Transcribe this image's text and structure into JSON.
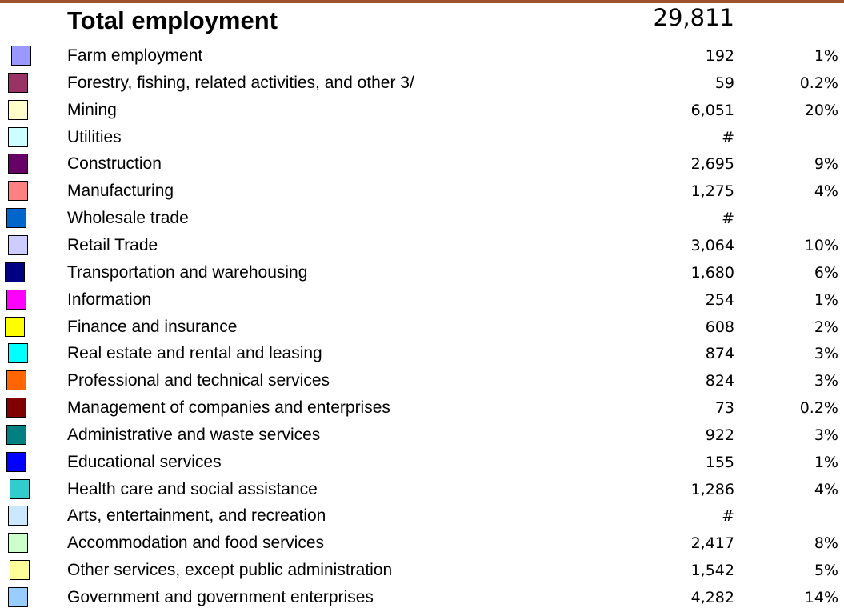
{
  "header": {
    "title": "Total employment",
    "total": "29,811"
  },
  "table": {
    "rows": [
      {
        "label": "Farm employment",
        "value": "192",
        "percent": "1%",
        "color": "#9999ff"
      },
      {
        "label": "Forestry, fishing, related activities, and other 3/",
        "value": "59",
        "percent": "0.2%",
        "color": "#993366"
      },
      {
        "label": "Mining",
        "value": "6,051",
        "percent": "20%",
        "color": "#ffffcc"
      },
      {
        "label": "Utilities",
        "value": "#",
        "color": "#ccffff"
      },
      {
        "label": "Construction",
        "value": "2,695",
        "percent": "9%",
        "color": "#660066"
      },
      {
        "label": "Manufacturing",
        "value": "1,275",
        "percent": "4%",
        "color": "#ff8080"
      },
      {
        "label": "Wholesale trade",
        "value": "#",
        "color": "#0066cc"
      },
      {
        "label": "Retail Trade",
        "value": "3,064",
        "percent": "10%",
        "color": "#ccccff"
      },
      {
        "label": "Transportation and warehousing",
        "value": "1,680",
        "percent": "6%",
        "color": "#000080"
      },
      {
        "label": "Information",
        "value": "254",
        "percent": "1%",
        "color": "#ff00ff"
      },
      {
        "label": "Finance and insurance",
        "value": "608",
        "percent": "2%",
        "color": "#ffff00"
      },
      {
        "label": "Real estate and rental and leasing",
        "value": "874",
        "percent": "3%",
        "color": "#00ffff"
      },
      {
        "label": "Professional and technical services",
        "value": "824",
        "percent": "3%",
        "color": "#ff6600"
      },
      {
        "label": "Management of companies and enterprises",
        "value": "73",
        "percent": "0.2%",
        "color": "#800000"
      },
      {
        "label": "Administrative and waste services",
        "value": "922",
        "percent": "3%",
        "color": "#008080"
      },
      {
        "label": "Educational services",
        "value": "155",
        "percent": "1%",
        "color": "#0000ff"
      },
      {
        "label": "Health care and social assistance",
        "value": "1,286",
        "percent": "4%",
        "color": "#33cccc"
      },
      {
        "label": "Arts, entertainment, and recreation",
        "value": "#",
        "color": "#cce8ff"
      },
      {
        "label": "Accommodation and food services",
        "value": "2,417",
        "percent": "8%",
        "color": "#ccffcc"
      },
      {
        "label": "Other services, except public administration",
        "value": "1,542",
        "percent": "5%",
        "color": "#ffff99"
      },
      {
        "label": "Government and government enterprises",
        "value": "4,282",
        "percent": "14%",
        "color": "#99ccff"
      }
    ]
  }
}
